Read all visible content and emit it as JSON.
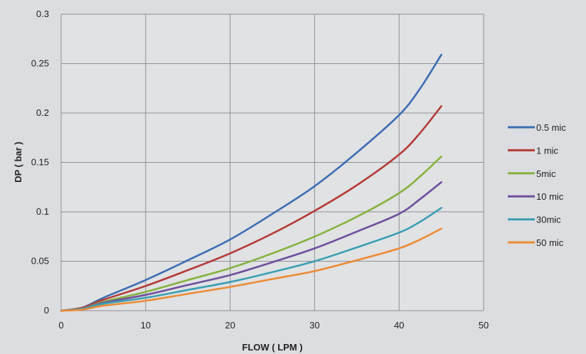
{
  "chart_data": {
    "type": "line",
    "title": "",
    "xlabel": "FLOW ( LPM )",
    "ylabel": "DP ( bar )",
    "xlim": [
      0,
      50
    ],
    "ylim": [
      0,
      0.3
    ],
    "xticks": [
      0,
      10,
      20,
      30,
      40,
      50
    ],
    "yticks": [
      0,
      0.05,
      0.1,
      0.15,
      0.2,
      0.25,
      0.3
    ],
    "grid": true,
    "legend": "right",
    "x": [
      0,
      2.5,
      5,
      10,
      15,
      20,
      25,
      30,
      35,
      40,
      42.5,
      45
    ],
    "series": [
      {
        "name": "0.5 mic",
        "color": "#3e6db3",
        "values": [
          0,
          0.003,
          0.013,
          0.031,
          0.051,
          0.072,
          0.098,
          0.126,
          0.16,
          0.198,
          0.225,
          0.259
        ]
      },
      {
        "name": "1 mic",
        "color": "#b53a38",
        "values": [
          0,
          0.003,
          0.011,
          0.025,
          0.041,
          0.058,
          0.078,
          0.101,
          0.127,
          0.158,
          0.18,
          0.207
        ]
      },
      {
        "name": "5mic",
        "color": "#86b23e",
        "values": [
          0,
          0.002,
          0.009,
          0.019,
          0.031,
          0.043,
          0.058,
          0.075,
          0.095,
          0.119,
          0.136,
          0.156
        ]
      },
      {
        "name": "10 mic",
        "color": "#6e4f9c",
        "values": [
          0,
          0.002,
          0.008,
          0.016,
          0.026,
          0.036,
          0.049,
          0.063,
          0.08,
          0.098,
          0.113,
          0.13
        ]
      },
      {
        "name": "30mic",
        "color": "#3a9fb3",
        "values": [
          0,
          0.002,
          0.007,
          0.013,
          0.021,
          0.029,
          0.039,
          0.05,
          0.064,
          0.079,
          0.09,
          0.104
        ]
      },
      {
        "name": "50 mic",
        "color": "#ee8a33",
        "values": [
          0,
          0.001,
          0.005,
          0.01,
          0.017,
          0.024,
          0.032,
          0.04,
          0.051,
          0.063,
          0.072,
          0.083
        ]
      }
    ]
  }
}
